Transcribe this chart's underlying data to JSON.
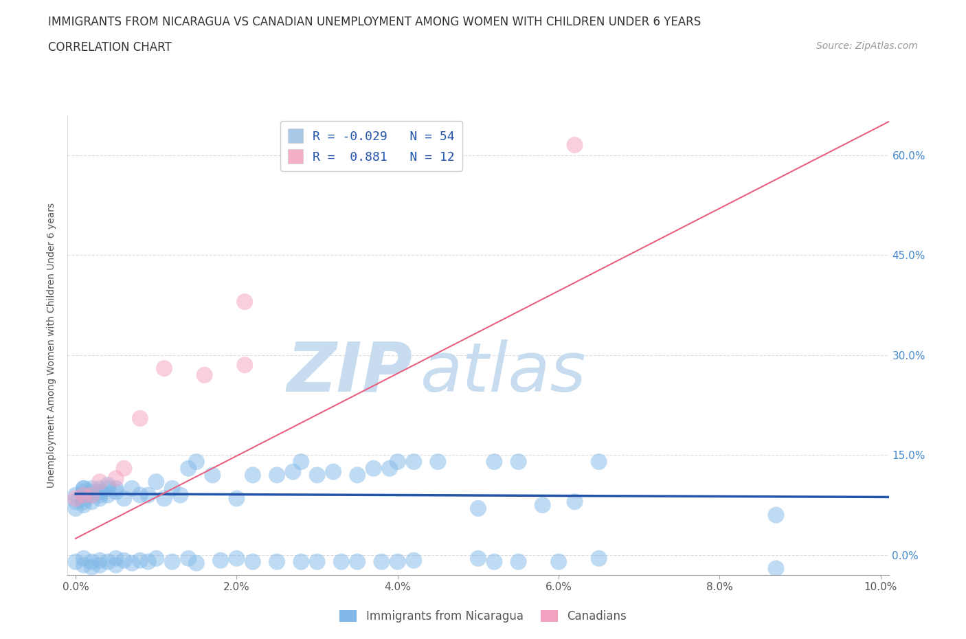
{
  "title": "IMMIGRANTS FROM NICARAGUA VS CANADIAN UNEMPLOYMENT AMONG WOMEN WITH CHILDREN UNDER 6 YEARS",
  "subtitle": "CORRELATION CHART",
  "source": "Source: ZipAtlas.com",
  "ylabel": "Unemployment Among Women with Children Under 6 years",
  "xlim": [
    -0.001,
    0.101
  ],
  "ylim": [
    -0.03,
    0.66
  ],
  "xticks": [
    0.0,
    0.02,
    0.04,
    0.06,
    0.08,
    0.1
  ],
  "xtick_labels": [
    "0.0%",
    "2.0%",
    "4.0%",
    "6.0%",
    "8.0%",
    "10.0%"
  ],
  "ytick_labels": [
    "0.0%",
    "15.0%",
    "30.0%",
    "45.0%",
    "60.0%"
  ],
  "yticks": [
    0.0,
    0.15,
    0.3,
    0.45,
    0.6
  ],
  "legend_entries": [
    {
      "label": "R = -0.029   N = 54",
      "color": "#a8c8e8"
    },
    {
      "label": "R =  0.881   N = 12",
      "color": "#f4b0c8"
    }
  ],
  "blue_scatter_x": [
    0.0,
    0.0,
    0.0,
    0.001,
    0.001,
    0.001,
    0.001,
    0.001,
    0.001,
    0.001,
    0.002,
    0.002,
    0.002,
    0.002,
    0.003,
    0.003,
    0.003,
    0.003,
    0.004,
    0.004,
    0.004,
    0.005,
    0.005,
    0.006,
    0.007,
    0.008,
    0.009,
    0.01,
    0.011,
    0.012,
    0.013,
    0.014,
    0.015,
    0.017,
    0.02,
    0.022,
    0.025,
    0.027,
    0.028,
    0.03,
    0.032,
    0.035,
    0.037,
    0.039,
    0.04,
    0.042,
    0.045,
    0.05,
    0.052,
    0.055,
    0.058,
    0.062,
    0.065,
    0.087
  ],
  "blue_scatter_y": [
    0.07,
    0.08,
    0.09,
    0.075,
    0.08,
    0.085,
    0.09,
    0.095,
    0.1,
    0.1,
    0.08,
    0.09,
    0.095,
    0.1,
    0.085,
    0.09,
    0.095,
    0.1,
    0.09,
    0.1,
    0.105,
    0.095,
    0.1,
    0.085,
    0.1,
    0.09,
    0.09,
    0.11,
    0.085,
    0.1,
    0.09,
    0.13,
    0.14,
    0.12,
    0.085,
    0.12,
    0.12,
    0.125,
    0.14,
    0.12,
    0.125,
    0.12,
    0.13,
    0.13,
    0.14,
    0.14,
    0.14,
    0.07,
    0.14,
    0.14,
    0.075,
    0.08,
    0.14,
    0.06
  ],
  "blue_scatter_y_neg": [
    0.0,
    0.0,
    0.0,
    0.0,
    0.0,
    0.0,
    0.0,
    0.0,
    0.0,
    0.0,
    0.0,
    0.0,
    0.0,
    0.0,
    0.0,
    0.0,
    0.0,
    0.0,
    0.0,
    0.0,
    0.0,
    0.0,
    0.0,
    0.0,
    0.0,
    0.0,
    0.0,
    0.0,
    0.0,
    0.0,
    0.0,
    0.0,
    0.0,
    0.0,
    0.0,
    0.0,
    0.0,
    0.0,
    0.0,
    0.0,
    0.0,
    0.0,
    0.0,
    0.0,
    0.0,
    0.0,
    0.0,
    0.0,
    0.0,
    0.0,
    0.0,
    0.0,
    0.0,
    0.0
  ],
  "pink_scatter_x": [
    0.0,
    0.001,
    0.002,
    0.003,
    0.005,
    0.006,
    0.008,
    0.011,
    0.016,
    0.021,
    0.021,
    0.062
  ],
  "pink_scatter_y": [
    0.085,
    0.09,
    0.09,
    0.11,
    0.115,
    0.13,
    0.205,
    0.28,
    0.27,
    0.285,
    0.38,
    0.615
  ],
  "blue_line_x": [
    0.0,
    0.101
  ],
  "blue_line_y": [
    0.092,
    0.087
  ],
  "pink_line_x": [
    0.0,
    0.101
  ],
  "pink_line_y": [
    0.025,
    0.65
  ],
  "blue_color": "#80b8e8",
  "pink_color": "#f4a0c0",
  "blue_line_color": "#2255aa",
  "pink_line_color": "#e86080",
  "watermark_zip": "ZIP",
  "watermark_atlas": "atlas",
  "watermark_color": "#c8dcf0",
  "background_color": "#ffffff",
  "title_color": "#333333",
  "source_color": "#999999",
  "ylabel_color": "#555555",
  "right_ytick_color": "#4488cc",
  "grid_color": "#dddddd"
}
